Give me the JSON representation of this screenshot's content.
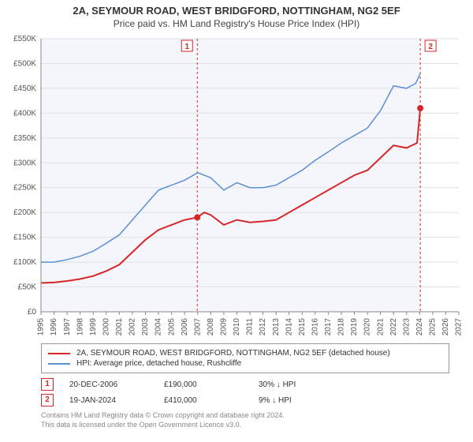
{
  "title": "2A, SEYMOUR ROAD, WEST BRIDGFORD, NOTTINGHAM, NG2 5EF",
  "subtitle": "Price paid vs. HM Land Registry's House Price Index (HPI)",
  "chart": {
    "type": "line",
    "background_color": "#ffffff",
    "plot_background_shaded": "#f4f6fb",
    "grid_color": "#e0e0e0",
    "x": {
      "min": 1995,
      "max": 2027,
      "ticks": [
        1995,
        1996,
        1997,
        1998,
        1999,
        2000,
        2001,
        2002,
        2003,
        2004,
        2005,
        2006,
        2007,
        2008,
        2009,
        2010,
        2011,
        2012,
        2013,
        2014,
        2015,
        2016,
        2017,
        2018,
        2019,
        2020,
        2021,
        2022,
        2023,
        2024,
        2025,
        2026,
        2027
      ],
      "label_fontsize": 10
    },
    "y": {
      "min": 0,
      "max": 550000,
      "ticks": [
        0,
        50000,
        100000,
        150000,
        200000,
        250000,
        300000,
        350000,
        400000,
        450000,
        500000,
        550000
      ],
      "tick_labels": [
        "£0",
        "£50K",
        "£100K",
        "£150K",
        "£200K",
        "£250K",
        "£300K",
        "£350K",
        "£400K",
        "£450K",
        "£500K",
        "£550K"
      ],
      "label_fontsize": 10
    },
    "shaded_region": {
      "x_from": 1995,
      "x_to": 2024.05
    },
    "series": [
      {
        "id": "property",
        "label": "2A, SEYMOUR ROAD, WEST BRIDGFORD, NOTTINGHAM, NG2 5EF (detached house)",
        "color": "#d62728",
        "width": 2,
        "data": [
          [
            1995,
            58000
          ],
          [
            1996,
            59000
          ],
          [
            1997,
            62000
          ],
          [
            1998,
            66000
          ],
          [
            1999,
            72000
          ],
          [
            2000,
            82000
          ],
          [
            2001,
            95000
          ],
          [
            2002,
            120000
          ],
          [
            2003,
            145000
          ],
          [
            2004,
            165000
          ],
          [
            2005,
            175000
          ],
          [
            2006,
            185000
          ],
          [
            2006.97,
            190000
          ],
          [
            2007.5,
            200000
          ],
          [
            2008,
            195000
          ],
          [
            2009,
            175000
          ],
          [
            2010,
            185000
          ],
          [
            2011,
            180000
          ],
          [
            2012,
            182000
          ],
          [
            2013,
            185000
          ],
          [
            2014,
            200000
          ],
          [
            2015,
            215000
          ],
          [
            2016,
            230000
          ],
          [
            2017,
            245000
          ],
          [
            2018,
            260000
          ],
          [
            2019,
            275000
          ],
          [
            2020,
            285000
          ],
          [
            2021,
            310000
          ],
          [
            2022,
            335000
          ],
          [
            2023,
            330000
          ],
          [
            2023.8,
            340000
          ],
          [
            2024.05,
            410000
          ]
        ]
      },
      {
        "id": "hpi",
        "label": "HPI: Average price, detached house, Rushcliffe",
        "color": "#5b8fd6",
        "width": 1.5,
        "data": [
          [
            1995,
            100000
          ],
          [
            1996,
            100000
          ],
          [
            1997,
            105000
          ],
          [
            1998,
            112000
          ],
          [
            1999,
            122000
          ],
          [
            2000,
            138000
          ],
          [
            2001,
            155000
          ],
          [
            2002,
            185000
          ],
          [
            2003,
            215000
          ],
          [
            2004,
            245000
          ],
          [
            2005,
            255000
          ],
          [
            2006,
            265000
          ],
          [
            2007,
            280000
          ],
          [
            2008,
            270000
          ],
          [
            2009,
            245000
          ],
          [
            2010,
            260000
          ],
          [
            2011,
            250000
          ],
          [
            2012,
            250000
          ],
          [
            2013,
            255000
          ],
          [
            2014,
            270000
          ],
          [
            2015,
            285000
          ],
          [
            2016,
            305000
          ],
          [
            2017,
            322000
          ],
          [
            2018,
            340000
          ],
          [
            2019,
            355000
          ],
          [
            2020,
            370000
          ],
          [
            2021,
            405000
          ],
          [
            2022,
            455000
          ],
          [
            2023,
            450000
          ],
          [
            2023.7,
            460000
          ],
          [
            2024.05,
            480000
          ]
        ]
      }
    ],
    "verticals": [
      {
        "x": 2006.97,
        "color": "#d62728",
        "dash": "3,3"
      },
      {
        "x": 2024.05,
        "color": "#d62728",
        "dash": "3,3"
      }
    ],
    "point_markers": [
      {
        "x": 2006.97,
        "y": 190000,
        "color": "#d62728",
        "r": 4
      },
      {
        "x": 2024.05,
        "y": 410000,
        "color": "#d62728",
        "r": 4
      }
    ],
    "number_markers": [
      {
        "n": "1",
        "x": 2006.97,
        "anchor": "left"
      },
      {
        "n": "2",
        "x": 2024.05,
        "anchor": "right"
      }
    ]
  },
  "legend": {
    "rows": [
      {
        "color": "#d62728",
        "label": "2A, SEYMOUR ROAD, WEST BRIDGFORD, NOTTINGHAM, NG2 5EF (detached house)"
      },
      {
        "color": "#5b8fd6",
        "label": "HPI: Average price, detached house, Rushcliffe"
      }
    ]
  },
  "sales": [
    {
      "n": "1",
      "date": "20-DEC-2006",
      "price": "£190,000",
      "diff": "30%",
      "arrow": "↓",
      "vs": "HPI"
    },
    {
      "n": "2",
      "date": "19-JAN-2024",
      "price": "£410,000",
      "diff": "9%",
      "arrow": "↓",
      "vs": "HPI"
    }
  ],
  "footer": {
    "line1": "Contains HM Land Registry data © Crown copyright and database right 2024.",
    "line2": "This data is licensed under the Open Government Licence v3.0."
  }
}
